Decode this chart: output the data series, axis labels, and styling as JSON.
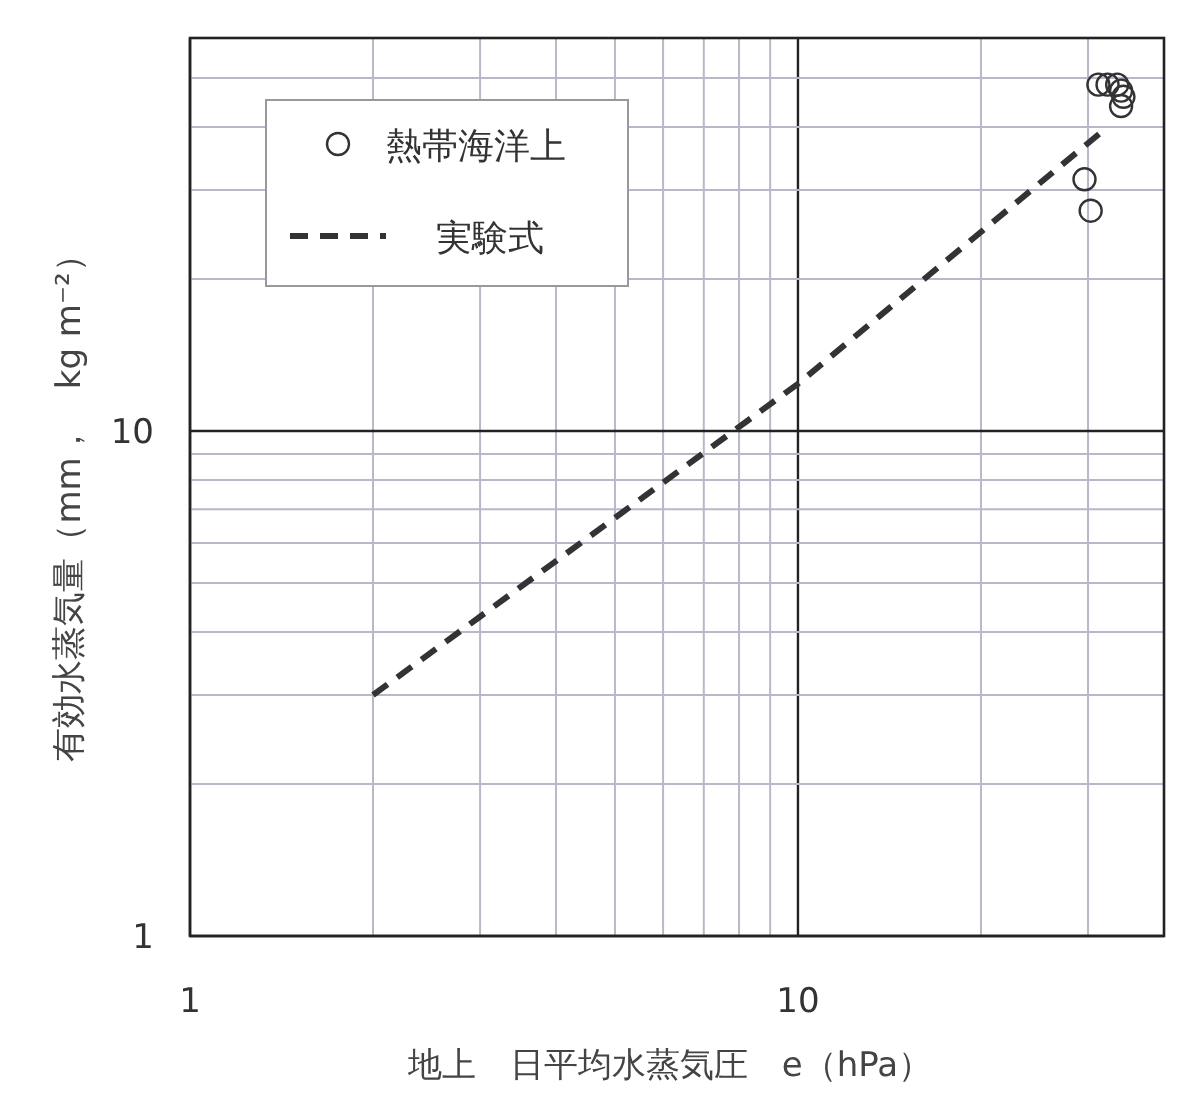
{
  "chart_data": {
    "type": "scatter",
    "xlabel": "地上　日平均水蒸気圧　e（hPa）",
    "ylabel": "有効水蒸気量（mm，　kg m⁻²）",
    "log": "xy",
    "grid": true,
    "legend": "top left",
    "xlim": [
      1,
      40
    ],
    "ylim": [
      1,
      60
    ],
    "xticks": [
      1,
      {
        "value": 2,
        "label": null
      },
      {
        "value": 3,
        "label": null
      },
      {
        "value": 4,
        "label": null
      },
      {
        "value": 5,
        "label": null
      },
      {
        "value": 6,
        "label": null
      },
      {
        "value": 7,
        "label": null
      },
      {
        "value": 8,
        "label": null
      },
      {
        "value": 9,
        "label": null
      },
      10,
      {
        "value": 20,
        "label": null
      },
      {
        "value": 30,
        "label": null
      }
    ],
    "yticks": [
      1,
      {
        "value": 2,
        "label": null
      },
      {
        "value": 3,
        "label": null
      },
      {
        "value": 4,
        "label": null
      },
      {
        "value": 5,
        "label": null
      },
      {
        "value": 6,
        "label": null
      },
      {
        "value": 7,
        "label": null
      },
      {
        "value": 8,
        "label": null
      },
      {
        "value": 9,
        "label": null
      },
      10,
      {
        "value": 20,
        "label": null
      },
      {
        "value": 30,
        "label": null
      },
      {
        "value": 40,
        "label": null
      },
      {
        "value": 50,
        "label": null
      }
    ],
    "series": [
      {
        "name": "熱帯海洋上",
        "marker": "circle",
        "color": "#333333",
        "x": [
          31.2,
          32.3,
          33.5,
          34,
          34.3,
          34,
          29.6,
          30.3
        ],
        "values": [
          48.5,
          48.5,
          48.5,
          47.2,
          45.9,
          44,
          31.5,
          27.3
        ]
      },
      {
        "name": "実験式",
        "type": "line",
        "marker": "none",
        "line_style": "dashed",
        "color": "#333333",
        "x": [
          2,
          10,
          32.3
        ],
        "values": [
          3,
          12.4,
          40
        ]
      }
    ]
  }
}
